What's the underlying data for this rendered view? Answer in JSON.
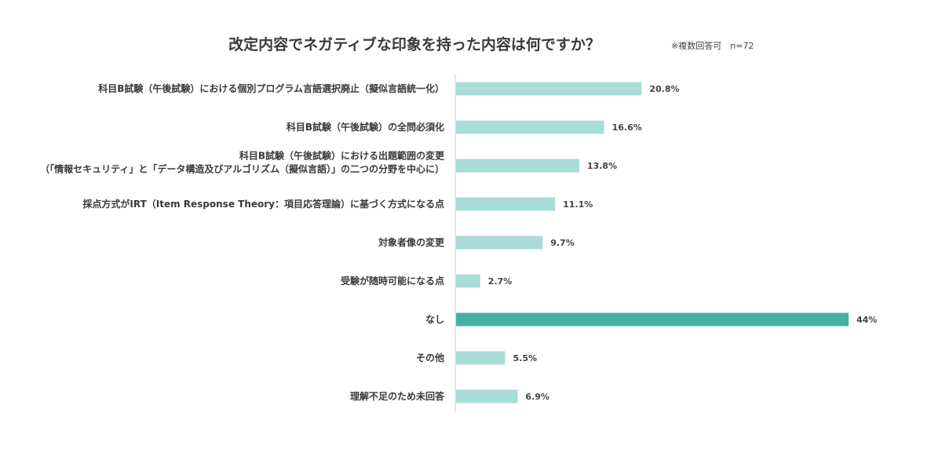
{
  "chart_data": {
    "type": "bar",
    "orientation": "horizontal",
    "title": "改定内容でネガティブな印象を持った内容は何ですか？",
    "note": "※複数回答可　n=72",
    "categories": [
      [
        "科目B試験（午後試験）における個別プログラム言語選択廃止（擬似言語統一化）"
      ],
      [
        "科目B試験（午後試験）の全問必須化"
      ],
      [
        "科目B試験（午後試験）における出題範囲の変更",
        "（「情報セキュリティ」と「データ構造及びアルゴリズム（擬似言語）」の二つの分野を中心に）"
      ],
      [
        "採点方式がIRT（Item Response Theory：項目応答理論）に基づく方式になる点"
      ],
      [
        "対象者像の変更"
      ],
      [
        "受験が随時可能になる点"
      ],
      [
        "なし"
      ],
      [
        "その他"
      ],
      [
        "理解不足のため未回答"
      ]
    ],
    "values": [
      20.8,
      16.6,
      13.8,
      11.1,
      9.7,
      2.7,
      44,
      5.5,
      6.9
    ],
    "value_labels": [
      "20.8%",
      "16.6%",
      "13.8%",
      "11.1%",
      "9.7%",
      "2.7%",
      "44%",
      "5.5%",
      "6.9%"
    ],
    "highlight_index": 6,
    "colors": {
      "bar": "#a9dcd6",
      "highlight": "#45b1a2",
      "axis": "#cfcfcf"
    },
    "xlim": [
      0,
      44
    ],
    "grid": false
  }
}
